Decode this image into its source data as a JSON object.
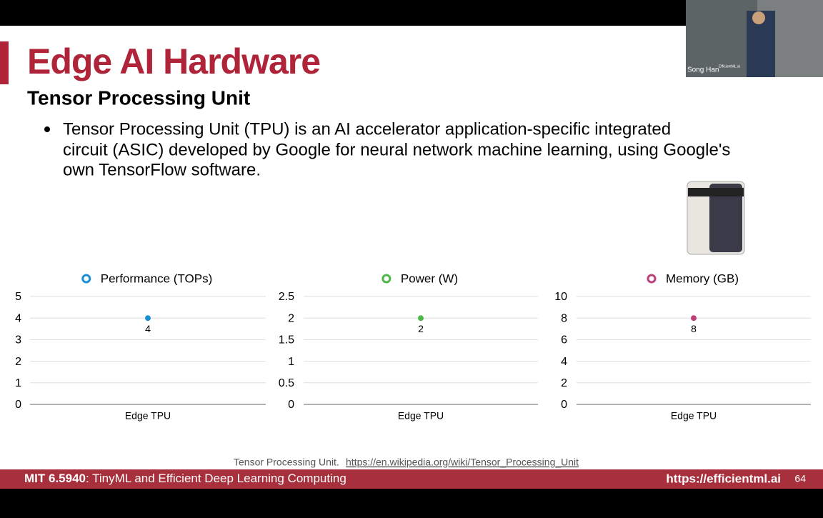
{
  "header": {
    "title": "Edge AI Hardware",
    "subtitle": "Tensor Processing Unit"
  },
  "bullets": [
    "Tensor Processing Unit (TPU) is an AI accelerator application-specific integrated",
    "circuit (ASIC) developed by Google for neural network machine learning, using Google's",
    "own TensorFlow software."
  ],
  "video": {
    "speaker": "Song Han",
    "watermark": "EfficientML.ai"
  },
  "citation": {
    "text": "Tensor Processing Unit.",
    "link": "https://en.wikipedia.org/wiki/Tensor_Processing_Unit"
  },
  "footer": {
    "course": "MIT 6.5940",
    "course_title": ": TinyML and Efficient Deep Learning Computing",
    "url": "https://efficientml.ai",
    "page": "64"
  },
  "chart_data": [
    {
      "type": "line",
      "categories": [
        "Edge TPU"
      ],
      "series": [
        {
          "name": "Performance (TOPs)",
          "color": "#1a8fd6",
          "values": [
            4
          ]
        }
      ],
      "ylim": [
        0,
        5
      ],
      "yticks": [
        0,
        1,
        2,
        3,
        4,
        5
      ],
      "grid": true
    },
    {
      "type": "line",
      "categories": [
        "Edge TPU"
      ],
      "series": [
        {
          "name": "Power (W)",
          "color": "#4cb848",
          "values": [
            2
          ]
        }
      ],
      "ylim": [
        0,
        2.5
      ],
      "yticks": [
        0,
        0.5,
        1,
        1.5,
        2,
        2.5
      ],
      "grid": true
    },
    {
      "type": "line",
      "categories": [
        "Edge TPU"
      ],
      "series": [
        {
          "name": "Memory (GB)",
          "color": "#c2407a",
          "values": [
            8
          ]
        }
      ],
      "ylim": [
        0,
        10
      ],
      "yticks": [
        0,
        2,
        4,
        6,
        8,
        10
      ],
      "grid": true
    }
  ]
}
